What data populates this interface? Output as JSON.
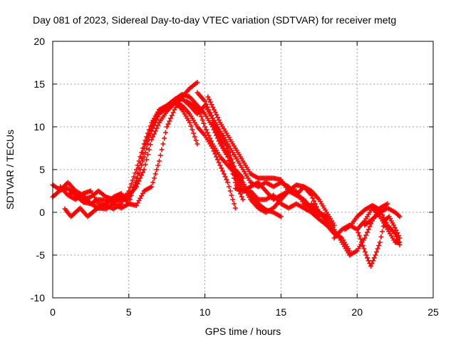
{
  "chart_data": {
    "type": "scatter",
    "title": "Day 081 of 2023, Sidereal Day-to-day VTEC variation (SDTVAR) for receiver metg",
    "xlabel": "GPS time / hours",
    "ylabel": "SDTVAR / TECUs",
    "xlim": [
      0,
      25
    ],
    "ylim": [
      -10,
      20
    ],
    "x_ticks": [
      0,
      5,
      10,
      15,
      20,
      25
    ],
    "y_ticks": [
      -10,
      -5,
      0,
      5,
      10,
      15,
      20
    ],
    "x_tick_labels": [
      "0",
      "5",
      "10",
      "15",
      "20",
      "25"
    ],
    "y_tick_labels": [
      "-10",
      "-5",
      "0",
      "5",
      "10",
      "15",
      "20"
    ],
    "grid": true,
    "marker": "+",
    "series": [
      {
        "name": "SDTVAR",
        "color": "#ff0000",
        "tracks": [
          [
            [
              0,
              3.2
            ],
            [
              0.5,
              2.6
            ],
            [
              1,
              2.8
            ],
            [
              1.5,
              2.0
            ],
            [
              2,
              1.2
            ],
            [
              2.5,
              1.0
            ],
            [
              3,
              1.5
            ],
            [
              3.5,
              1.4
            ],
            [
              4,
              1.2
            ],
            [
              4.5,
              1.5
            ],
            [
              5,
              1.6
            ],
            [
              5.5,
              3.5
            ],
            [
              6,
              6.5
            ],
            [
              6.5,
              9.5
            ],
            [
              7,
              11.5
            ],
            [
              7.5,
              12.3
            ],
            [
              8,
              13.0
            ],
            [
              8.5,
              12.0
            ],
            [
              9,
              10.5
            ],
            [
              9.5,
              8.0
            ]
          ],
          [
            [
              0,
              1.8
            ],
            [
              0.5,
              2.6
            ],
            [
              1,
              3.5
            ],
            [
              1.5,
              2.5
            ],
            [
              2,
              2.0
            ],
            [
              2.5,
              1.0
            ],
            [
              3,
              0.5
            ],
            [
              3.5,
              0.4
            ],
            [
              4,
              1.0
            ],
            [
              4.5,
              0.5
            ],
            [
              5,
              1.0
            ],
            [
              5.5,
              4.0
            ],
            [
              6,
              7.5
            ],
            [
              6.5,
              10.0
            ],
            [
              7,
              12.0
            ],
            [
              7.5,
              12.5
            ],
            [
              8,
              13.2
            ],
            [
              8.5,
              13.8
            ],
            [
              9,
              13.5
            ],
            [
              9.5,
              12.5
            ],
            [
              10,
              11.5
            ],
            [
              10.5,
              10.0
            ],
            [
              11,
              8.0
            ],
            [
              11.5,
              6.5
            ],
            [
              12,
              3.5
            ],
            [
              12.5,
              1.5
            ]
          ],
          [
            [
              0.5,
              3.0
            ],
            [
              1,
              2.0
            ],
            [
              1.5,
              1.5
            ],
            [
              2,
              2.2
            ],
            [
              2.5,
              2.5
            ],
            [
              3,
              1.0
            ],
            [
              3.5,
              0.8
            ],
            [
              4,
              0.4
            ],
            [
              4.5,
              1.0
            ],
            [
              5,
              2.5
            ],
            [
              5.5,
              5.0
            ],
            [
              6,
              8.0
            ],
            [
              6.5,
              10.5
            ],
            [
              7,
              12.0
            ],
            [
              7.5,
              12.0
            ],
            [
              8,
              12.8
            ],
            [
              8.5,
              12.5
            ],
            [
              9,
              11.5
            ],
            [
              9.5,
              10.0
            ],
            [
              10,
              9.0
            ],
            [
              10.5,
              7.5
            ],
            [
              11,
              5.5
            ],
            [
              11.5,
              3.5
            ],
            [
              12,
              0.5
            ]
          ],
          [
            [
              1,
              2.0
            ],
            [
              1.5,
              2.5
            ],
            [
              2,
              1.5
            ],
            [
              2.5,
              1.8
            ],
            [
              3,
              2.5
            ],
            [
              3.5,
              1.8
            ],
            [
              4,
              1.5
            ],
            [
              4.5,
              1.8
            ],
            [
              5,
              2.0
            ],
            [
              5.5,
              3.0
            ],
            [
              6,
              5.0
            ],
            [
              6.5,
              8.5
            ],
            [
              7,
              10.5
            ],
            [
              7.5,
              11.8
            ],
            [
              8,
              12.8
            ],
            [
              8.5,
              13.3
            ],
            [
              9,
              12.5
            ],
            [
              9.5,
              11.5
            ],
            [
              10,
              12.5
            ],
            [
              10.5,
              11.0
            ],
            [
              11,
              9.0
            ],
            [
              11.5,
              7.5
            ],
            [
              12,
              5.0
            ],
            [
              12.5,
              4.0
            ]
          ],
          [
            [
              0.8,
              0.4
            ],
            [
              1.2,
              -0.5
            ],
            [
              1.8,
              0.5
            ],
            [
              2.3,
              -0.5
            ],
            [
              2.8,
              0.3
            ],
            [
              3.5,
              1.0
            ],
            [
              4,
              1.8
            ],
            [
              4.5,
              2.2
            ],
            [
              5,
              1.0
            ],
            [
              5.5,
              0.8
            ],
            [
              6,
              2.5
            ],
            [
              6.5,
              3.0
            ],
            [
              7,
              6.0
            ],
            [
              7.5,
              10.0
            ],
            [
              8,
              12.0
            ],
            [
              8.5,
              13.5
            ],
            [
              9,
              14.5
            ],
            [
              9.5,
              15.2
            ]
          ],
          [
            [
              8.8,
              13.0
            ],
            [
              9.2,
              12.5
            ],
            [
              9.6,
              12.0
            ],
            [
              10,
              10.0
            ],
            [
              10.5,
              8.0
            ],
            [
              11,
              6.5
            ],
            [
              11.5,
              5.5
            ],
            [
              12,
              4.5
            ],
            [
              12.5,
              3.5
            ],
            [
              13,
              2.0
            ],
            [
              13.5,
              1.0
            ],
            [
              14,
              0.3
            ],
            [
              14.5,
              0.0
            ],
            [
              15,
              -0.5
            ]
          ],
          [
            [
              9.5,
              14.0
            ],
            [
              10,
              13.0
            ],
            [
              10.5,
              11.0
            ],
            [
              11,
              9.5
            ],
            [
              11.5,
              8.0
            ],
            [
              12,
              6.5
            ],
            [
              12.5,
              5.0
            ],
            [
              13,
              3.5
            ],
            [
              13.5,
              3.0
            ],
            [
              14,
              3.5
            ],
            [
              14.5,
              3.0
            ],
            [
              15,
              3.5
            ],
            [
              15.5,
              3.0
            ],
            [
              16,
              2.0
            ],
            [
              16.5,
              1.5
            ],
            [
              17,
              0.5
            ],
            [
              17.5,
              -0.5
            ]
          ],
          [
            [
              10.2,
              13.5
            ],
            [
              10.6,
              12.0
            ],
            [
              11,
              10.5
            ],
            [
              11.5,
              9.0
            ],
            [
              12,
              7.5
            ],
            [
              12.5,
              6.0
            ],
            [
              13,
              4.5
            ],
            [
              13.5,
              4.0
            ],
            [
              14,
              4.0
            ],
            [
              14.5,
              4.0
            ],
            [
              15,
              3.8
            ],
            [
              15.5,
              2.5
            ],
            [
              16,
              2.0
            ],
            [
              16.5,
              3.0
            ],
            [
              17,
              2.5
            ],
            [
              17.5,
              1.5
            ],
            [
              18,
              0.0
            ],
            [
              18.5,
              -1.5
            ]
          ],
          [
            [
              10.5,
              10.5
            ],
            [
              11,
              8.5
            ],
            [
              11.5,
              6.5
            ],
            [
              12,
              4.0
            ],
            [
              12.5,
              2.5
            ],
            [
              13,
              2.5
            ],
            [
              13.5,
              1.5
            ],
            [
              14,
              1.5
            ],
            [
              14.5,
              2.0
            ],
            [
              15,
              1.0
            ],
            [
              15.5,
              0.5
            ],
            [
              16,
              1.0
            ],
            [
              16.5,
              0.5
            ],
            [
              17,
              0.0
            ],
            [
              17.5,
              -0.8
            ],
            [
              18,
              -1.5
            ],
            [
              18.5,
              -2.5
            ]
          ],
          [
            [
              11.2,
              9.0
            ],
            [
              11.6,
              6.5
            ],
            [
              12,
              4.5
            ],
            [
              12.5,
              3.0
            ],
            [
              13,
              1.5
            ],
            [
              13.5,
              0.5
            ],
            [
              14,
              0.0
            ],
            [
              14.5,
              0.5
            ],
            [
              15,
              1.5
            ],
            [
              15.5,
              2.5
            ],
            [
              16,
              2.5
            ],
            [
              16.5,
              1.0
            ],
            [
              17,
              0.5
            ],
            [
              17.5,
              0.0
            ],
            [
              18,
              -1.0
            ]
          ],
          [
            [
              12,
              2.8
            ],
            [
              12.5,
              2.5
            ],
            [
              13,
              3.0
            ],
            [
              13.5,
              3.5
            ],
            [
              14,
              2.5
            ],
            [
              14.5,
              1.5
            ],
            [
              15,
              2.0
            ],
            [
              15.5,
              2.5
            ],
            [
              16,
              3.2
            ],
            [
              16.5,
              3.0
            ],
            [
              17,
              2.0
            ],
            [
              17.5,
              0.0
            ],
            [
              18,
              -1.0
            ],
            [
              18.5,
              -2.5
            ],
            [
              19,
              -3.0
            ],
            [
              19.5,
              -4.5
            ]
          ],
          [
            [
              17,
              1.0
            ],
            [
              17.5,
              0.0
            ],
            [
              18,
              -0.5
            ],
            [
              18.5,
              -2.0
            ],
            [
              19,
              -3.5
            ],
            [
              19.5,
              -5.0
            ],
            [
              20,
              -4.5
            ],
            [
              20.5,
              -3.0
            ],
            [
              21,
              -1.0
            ],
            [
              21.5,
              0.5
            ],
            [
              22,
              1.0
            ]
          ],
          [
            [
              18.5,
              -3.0
            ],
            [
              19,
              -2.0
            ],
            [
              19.5,
              -1.5
            ],
            [
              20,
              -2.0
            ],
            [
              20.5,
              -1.0
            ],
            [
              21,
              0.5
            ],
            [
              21.5,
              -0.5
            ],
            [
              22,
              -2.0
            ],
            [
              22.5,
              -3.5
            ],
            [
              22.8,
              -3.5
            ]
          ],
          [
            [
              20,
              -2.0
            ],
            [
              20.3,
              -3.5
            ],
            [
              20.6,
              -5.0
            ],
            [
              20.9,
              -6.3
            ],
            [
              21.2,
              -5.0
            ],
            [
              21.5,
              -3.5
            ],
            [
              21.8,
              -1.0
            ],
            [
              22.1,
              -0.5
            ],
            [
              22.4,
              -1.5
            ],
            [
              22.8,
              -3.0
            ]
          ],
          [
            [
              20.5,
              -1.5
            ],
            [
              21,
              -0.8
            ],
            [
              21.5,
              0.0
            ],
            [
              22,
              0.5
            ],
            [
              22.5,
              0.0
            ],
            [
              22.8,
              -0.5
            ]
          ],
          [
            [
              19.2,
              -2.0
            ],
            [
              19.6,
              -1.5
            ],
            [
              20,
              -0.5
            ],
            [
              20.5,
              0.3
            ],
            [
              21,
              0.8
            ],
            [
              21.5,
              0.3
            ],
            [
              22,
              -1.5
            ],
            [
              22.5,
              -2.5
            ],
            [
              22.8,
              -3.8
            ]
          ]
        ]
      }
    ]
  }
}
